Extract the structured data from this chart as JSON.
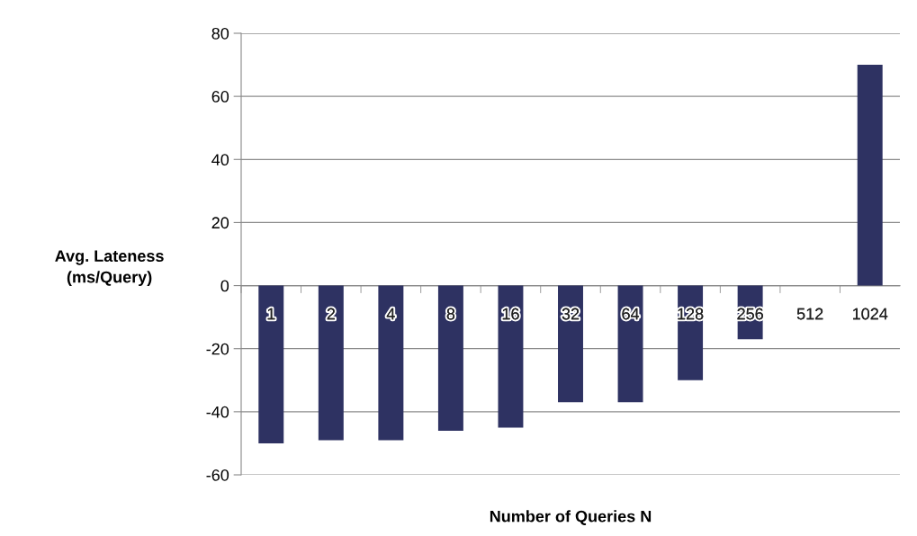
{
  "chart_data": {
    "type": "bar",
    "xlabel": "Number of Queries N",
    "ylabel": "Avg. Lateness\n(ms/Query)",
    "categories": [
      "1",
      "2",
      "4",
      "8",
      "16",
      "32",
      "64",
      "128",
      "256",
      "512",
      "1024"
    ],
    "values": [
      -50,
      -49,
      -49,
      -46,
      -45,
      -37,
      -37,
      -30,
      -17,
      0,
      70
    ],
    "color": "#2e3262",
    "ylim": [
      -60,
      80
    ],
    "yticks": [
      -60,
      -40,
      -20,
      0,
      20,
      40,
      60,
      80
    ],
    "grid": "y"
  }
}
